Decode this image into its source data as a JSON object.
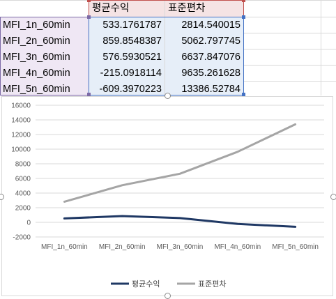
{
  "sheet": {
    "headers": [
      "평균수익",
      "표준편차"
    ],
    "rows": [
      {
        "name": "MFI_1n_60min",
        "mean": "533.1761787",
        "std": "2814.540015"
      },
      {
        "name": "MFI_2n_60min",
        "mean": "859.8548387",
        "std": "5062.797745"
      },
      {
        "name": "MFI_3n_60min",
        "mean": "576.5930521",
        "std": "6637.847076"
      },
      {
        "name": "MFI_4n_60min",
        "mean": "-215.0918114",
        "std": "9635.261628"
      },
      {
        "name": "MFI_5n_60min",
        "mean": "-609.3970223",
        "std": "13386.52784"
      }
    ],
    "colors": {
      "name_fill": "#efe7f4",
      "name_border": "#7c6aa6",
      "header_fill": "#f5e3e4",
      "header_border": "#c0504d",
      "value_fill": "#e6eef8",
      "value_border": "#4472c4"
    }
  },
  "chart_data": {
    "type": "line",
    "categories": [
      "MFI_1n_60min",
      "MFI_2n_60min",
      "MFI_3n_60min",
      "MFI_4n_60min",
      "MFI_5n_60min"
    ],
    "series": [
      {
        "name": "평균수익",
        "values": [
          533.1761787,
          859.8548387,
          576.5930521,
          -215.0918114,
          -609.3970223
        ],
        "color": "#1f3864"
      },
      {
        "name": "표준편차",
        "values": [
          2814.540015,
          5062.797745,
          6637.847076,
          9635.261628,
          13386.52784
        ],
        "color": "#a5a5a5"
      }
    ],
    "ylim": [
      -2000,
      16000
    ],
    "yticks": [
      "16000",
      "14000",
      "12000",
      "10000",
      "8000",
      "6000",
      "4000",
      "2000",
      "0",
      "-2000"
    ],
    "grid": true,
    "legend": "bottom",
    "title": "",
    "xlabel": "",
    "ylabel": ""
  }
}
